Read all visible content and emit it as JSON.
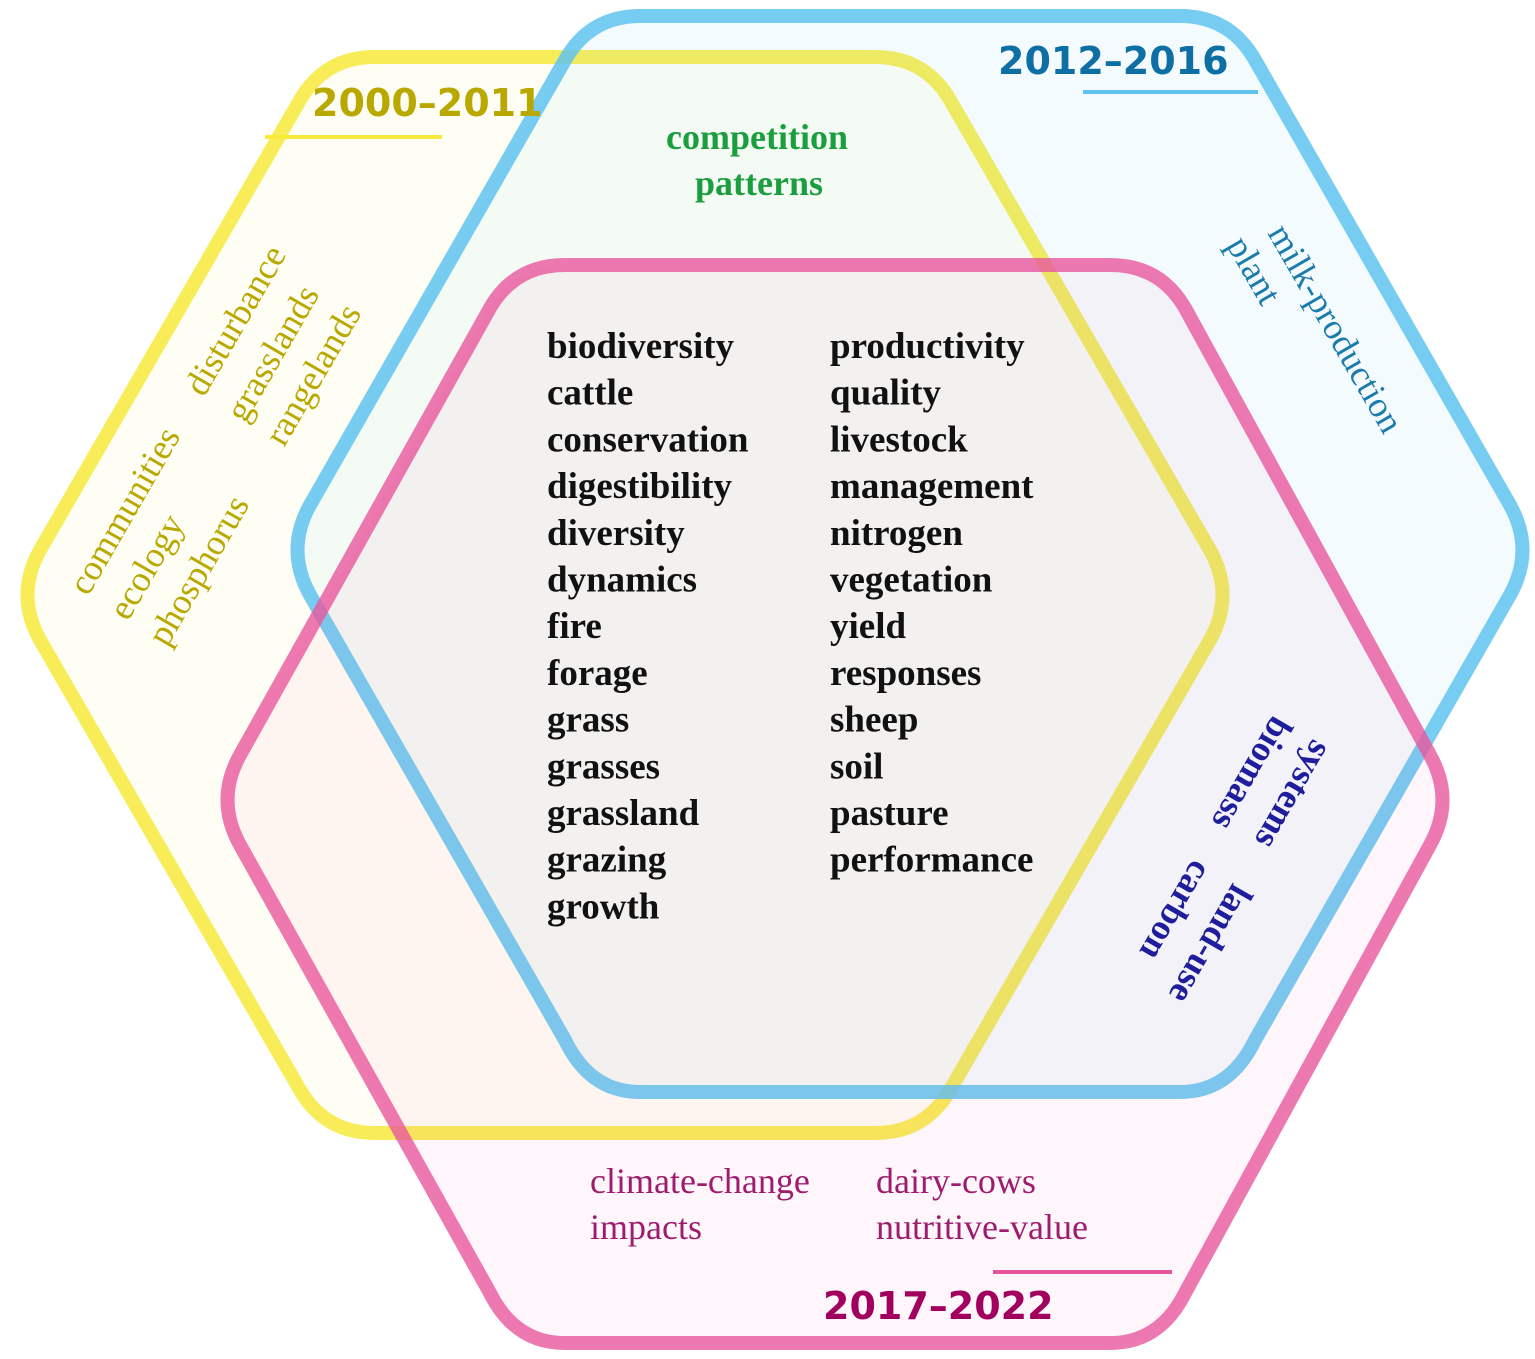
{
  "periods": {
    "p2000": "2000–2011",
    "p2012": "2012–2016",
    "p2017": "2017–2022"
  },
  "colors": {
    "yellow_ring": "#f7ea3c",
    "blue_ring": "#5fc3ee",
    "pink_ring": "#e8579e",
    "label_2000": "#b9a800",
    "label_2012": "#0d6fa3",
    "label_2017": "#a2005f",
    "green_text": "#1b9e3e",
    "teal_text": "#1b7bab",
    "navy_text": "#1e1e9c",
    "magenta_text": "#9e1c6e",
    "core_text": "#111111"
  },
  "keywords": {
    "only_2000_2011": [
      "communities",
      "ecology",
      "phosphorus",
      "disturbance",
      "grasslands",
      "rangelands"
    ],
    "shared_2000_2016": [
      "competition",
      "patterns"
    ],
    "only_2012_2016": [
      "milk-production",
      "plant"
    ],
    "shared_2012_2022": [
      "systems",
      "biomass",
      "land-use",
      "carbon"
    ],
    "only_2017_2022": [
      "climate-change",
      "impacts",
      "dairy-cows",
      "nutritive-value"
    ],
    "all_periods_col1": [
      "biodiversity",
      "cattle",
      "conservation",
      "digestibility",
      "diversity",
      "dynamics",
      "fire",
      "forage",
      "grass",
      "grasses",
      "grassland",
      "grazing",
      "growth"
    ],
    "all_periods_col2": [
      "productivity",
      "quality",
      "livestock",
      "management",
      "nitrogen",
      "vegetation",
      "yield",
      "responses",
      "sheep",
      "soil",
      "pasture",
      "performance"
    ]
  }
}
